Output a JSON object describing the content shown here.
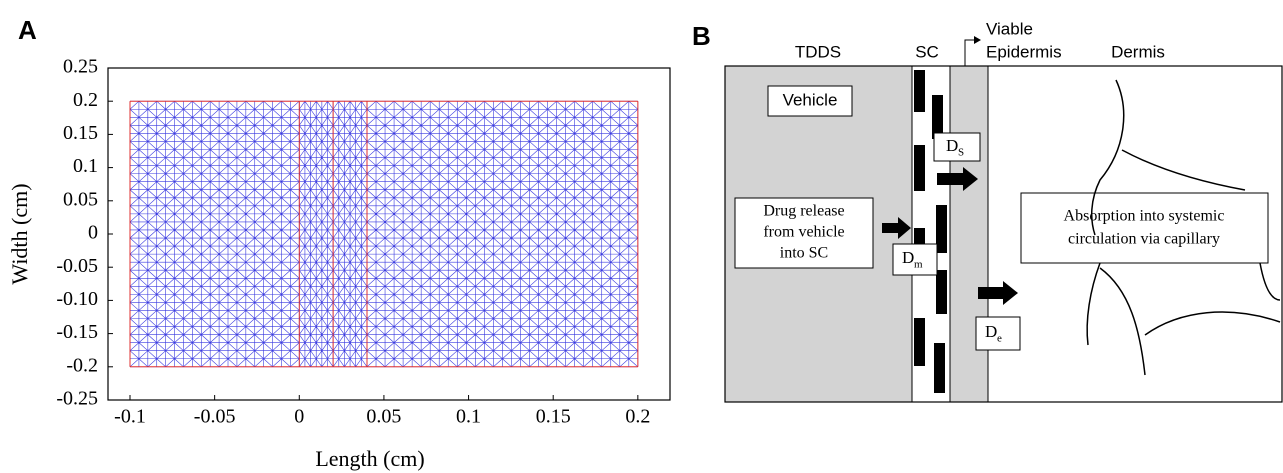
{
  "chart_data": {
    "type": "mesh",
    "panel": "A",
    "x_label": "Length (cm)",
    "y_label": "Width (cm)",
    "xlim": [
      -0.113,
      0.219
    ],
    "ylim": [
      -0.25,
      0.25
    ],
    "xticks": [
      -0.1,
      -0.05,
      0,
      0.05,
      0.1,
      0.15,
      0.2
    ],
    "yticks": [
      0.25,
      0.2,
      0.15,
      0.1,
      0.05,
      0,
      -0.05,
      {
        "value": -0.1,
        "label": "-0.10"
      },
      -0.15,
      -0.2,
      -0.25
    ],
    "region_x": [
      -0.1,
      0,
      0.02,
      0.04,
      0.2
    ],
    "region_y": [
      -0.2,
      0.2
    ],
    "boundary_color": "#e03030",
    "mesh_color": "#3a3ae0"
  },
  "diagram": {
    "panel": "B",
    "layers": [
      "TDDS",
      "SC",
      "Dermis"
    ],
    "viable_epidermis": [
      "Viable",
      "Epidermis"
    ],
    "vehicle": "Vehicle",
    "drug_release": [
      "Drug release",
      "from vehicle",
      "into SC"
    ],
    "absorption": [
      "Absorption into systemic",
      "circulation via capillary"
    ],
    "coefficients": [
      {
        "text": "D",
        "sub": "S"
      },
      {
        "text": "D",
        "sub": "m"
      },
      {
        "text": "D",
        "sub": "e"
      }
    ]
  }
}
